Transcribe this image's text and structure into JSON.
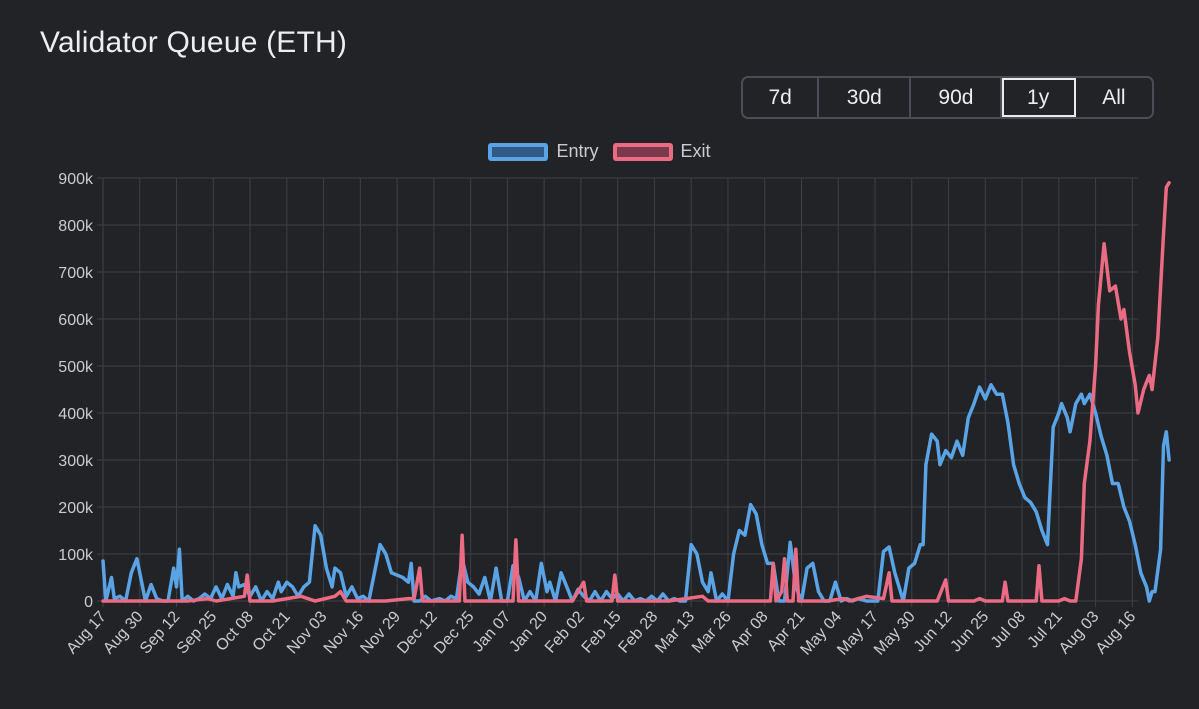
{
  "title": "Validator Queue (ETH)",
  "range_buttons": [
    "7d",
    "30d",
    "90d",
    "1y",
    "All"
  ],
  "active_range": "1y",
  "colors": {
    "background": "#212327",
    "grid": "#3d4046",
    "entry": "#5aa4e6",
    "entry_fill": "#2f5a85",
    "exit": "#ec6b84",
    "exit_fill": "#7a3a4a"
  },
  "chart_data": {
    "type": "line",
    "title": "Validator Queue (ETH)",
    "xlabel": "",
    "ylabel": "",
    "ylim": [
      0,
      900000
    ],
    "yticks": [
      0,
      100000,
      200000,
      300000,
      400000,
      500000,
      600000,
      700000,
      800000,
      900000
    ],
    "ytick_labels": [
      "0",
      "100k",
      "200k",
      "300k",
      "400k",
      "500k",
      "600k",
      "700k",
      "800k",
      "900k"
    ],
    "grid": true,
    "legend": "top-center",
    "x_tick_labels": [
      "Aug 17",
      "Aug 30",
      "Sep 12",
      "Sep 25",
      "Oct 08",
      "Oct 21",
      "Nov 03",
      "Nov 16",
      "Nov 29",
      "Dec 12",
      "Dec 25",
      "Jan 07",
      "Jan 20",
      "Feb 02",
      "Feb 15",
      "Feb 28",
      "Mar 13",
      "Mar 26",
      "Apr 08",
      "Apr 21",
      "May 04",
      "May 17",
      "May 30",
      "Jun 12",
      "Jun 25",
      "Jul 08",
      "Jul 21",
      "Aug 03",
      "Aug 16"
    ],
    "x_day_range": [
      0,
      366
    ],
    "x_tick_days": [
      0,
      13,
      26,
      39,
      52,
      65,
      78,
      91,
      104,
      117,
      130,
      143,
      156,
      169,
      182,
      195,
      208,
      221,
      234,
      247,
      260,
      273,
      286,
      299,
      312,
      325,
      338,
      351,
      364
    ],
    "series": [
      {
        "name": "Entry",
        "points": [
          [
            0,
            85000
          ],
          [
            1,
            0
          ],
          [
            3,
            50000
          ],
          [
            4,
            5000
          ],
          [
            6,
            10000
          ],
          [
            8,
            0
          ],
          [
            10,
            60000
          ],
          [
            12,
            90000
          ],
          [
            14,
            30000
          ],
          [
            15,
            0
          ],
          [
            17,
            35000
          ],
          [
            19,
            5000
          ],
          [
            21,
            0
          ],
          [
            23,
            0
          ],
          [
            25,
            70000
          ],
          [
            26,
            30000
          ],
          [
            27,
            110000
          ],
          [
            28,
            0
          ],
          [
            30,
            10000
          ],
          [
            32,
            0
          ],
          [
            34,
            5000
          ],
          [
            36,
            15000
          ],
          [
            38,
            5000
          ],
          [
            40,
            30000
          ],
          [
            42,
            5000
          ],
          [
            44,
            35000
          ],
          [
            46,
            10000
          ],
          [
            47,
            60000
          ],
          [
            48,
            30000
          ],
          [
            50,
            35000
          ],
          [
            52,
            10000
          ],
          [
            54,
            30000
          ],
          [
            56,
            0
          ],
          [
            58,
            20000
          ],
          [
            60,
            5000
          ],
          [
            62,
            40000
          ],
          [
            63,
            20000
          ],
          [
            65,
            40000
          ],
          [
            67,
            30000
          ],
          [
            69,
            10000
          ],
          [
            71,
            30000
          ],
          [
            73,
            40000
          ],
          [
            75,
            160000
          ],
          [
            77,
            140000
          ],
          [
            79,
            70000
          ],
          [
            81,
            30000
          ],
          [
            82,
            70000
          ],
          [
            84,
            60000
          ],
          [
            86,
            10000
          ],
          [
            88,
            30000
          ],
          [
            90,
            5000
          ],
          [
            92,
            10000
          ],
          [
            94,
            0
          ],
          [
            98,
            120000
          ],
          [
            100,
            100000
          ],
          [
            102,
            60000
          ],
          [
            104,
            55000
          ],
          [
            106,
            50000
          ],
          [
            108,
            40000
          ],
          [
            109,
            80000
          ],
          [
            110,
            0
          ],
          [
            112,
            0
          ],
          [
            114,
            10000
          ],
          [
            116,
            0
          ],
          [
            119,
            5000
          ],
          [
            121,
            0
          ],
          [
            123,
            10000
          ],
          [
            125,
            5000
          ],
          [
            127,
            90000
          ],
          [
            129,
            40000
          ],
          [
            131,
            30000
          ],
          [
            133,
            15000
          ],
          [
            135,
            50000
          ],
          [
            137,
            0
          ],
          [
            139,
            70000
          ],
          [
            141,
            0
          ],
          [
            143,
            0
          ],
          [
            145,
            75000
          ],
          [
            147,
            50000
          ],
          [
            149,
            0
          ],
          [
            151,
            20000
          ],
          [
            153,
            0
          ],
          [
            155,
            80000
          ],
          [
            157,
            20000
          ],
          [
            158,
            40000
          ],
          [
            160,
            0
          ],
          [
            162,
            60000
          ],
          [
            164,
            30000
          ],
          [
            166,
            0
          ],
          [
            168,
            25000
          ],
          [
            170,
            10000
          ],
          [
            172,
            0
          ],
          [
            174,
            20000
          ],
          [
            176,
            0
          ],
          [
            178,
            20000
          ],
          [
            180,
            5000
          ],
          [
            182,
            15000
          ],
          [
            184,
            0
          ],
          [
            186,
            15000
          ],
          [
            188,
            0
          ],
          [
            190,
            5000
          ],
          [
            192,
            0
          ],
          [
            194,
            10000
          ],
          [
            196,
            0
          ],
          [
            198,
            15000
          ],
          [
            200,
            0
          ],
          [
            202,
            5000
          ],
          [
            204,
            0
          ],
          [
            206,
            0
          ],
          [
            208,
            120000
          ],
          [
            210,
            100000
          ],
          [
            212,
            40000
          ],
          [
            214,
            20000
          ],
          [
            215,
            60000
          ],
          [
            217,
            0
          ],
          [
            219,
            15000
          ],
          [
            221,
            0
          ],
          [
            223,
            100000
          ],
          [
            225,
            150000
          ],
          [
            227,
            140000
          ],
          [
            229,
            205000
          ],
          [
            231,
            185000
          ],
          [
            233,
            120000
          ],
          [
            235,
            80000
          ],
          [
            237,
            80000
          ],
          [
            239,
            0
          ],
          [
            241,
            0
          ],
          [
            243,
            125000
          ],
          [
            245,
            30000
          ],
          [
            247,
            0
          ],
          [
            249,
            70000
          ],
          [
            251,
            80000
          ],
          [
            253,
            20000
          ],
          [
            255,
            0
          ],
          [
            257,
            0
          ],
          [
            259,
            40000
          ],
          [
            261,
            0
          ],
          [
            263,
            5000
          ],
          [
            265,
            0
          ],
          [
            267,
            5000
          ],
          [
            270,
            0
          ],
          [
            274,
            0
          ],
          [
            276,
            105000
          ],
          [
            278,
            115000
          ],
          [
            280,
            60000
          ],
          [
            282,
            20000
          ],
          [
            283,
            0
          ],
          [
            285,
            70000
          ],
          [
            287,
            80000
          ],
          [
            289,
            120000
          ],
          [
            290,
            120000
          ],
          [
            291,
            290000
          ],
          [
            293,
            355000
          ],
          [
            295,
            340000
          ],
          [
            296,
            290000
          ],
          [
            298,
            320000
          ],
          [
            300,
            305000
          ],
          [
            302,
            340000
          ],
          [
            304,
            310000
          ],
          [
            306,
            390000
          ],
          [
            308,
            420000
          ],
          [
            310,
            455000
          ],
          [
            312,
            430000
          ],
          [
            314,
            460000
          ],
          [
            316,
            440000
          ],
          [
            318,
            440000
          ],
          [
            320,
            380000
          ],
          [
            322,
            290000
          ],
          [
            324,
            250000
          ],
          [
            326,
            220000
          ],
          [
            328,
            210000
          ],
          [
            330,
            190000
          ],
          [
            332,
            150000
          ],
          [
            334,
            120000
          ],
          [
            336,
            370000
          ],
          [
            338,
            400000
          ],
          [
            339,
            420000
          ],
          [
            341,
            390000
          ],
          [
            342,
            360000
          ],
          [
            344,
            420000
          ],
          [
            346,
            440000
          ],
          [
            347,
            420000
          ],
          [
            349,
            440000
          ],
          [
            351,
            400000
          ],
          [
            353,
            350000
          ],
          [
            355,
            310000
          ],
          [
            357,
            250000
          ],
          [
            359,
            250000
          ],
          [
            361,
            200000
          ],
          [
            363,
            170000
          ],
          [
            365,
            120000
          ],
          [
            367,
            60000
          ],
          [
            369,
            30000
          ],
          [
            370,
            0
          ],
          [
            371,
            20000
          ],
          [
            372,
            20000
          ],
          [
            374,
            110000
          ],
          [
            375,
            330000
          ],
          [
            376,
            360000
          ],
          [
            377,
            300000
          ]
        ]
      },
      {
        "name": "Exit",
        "points": [
          [
            0,
            0
          ],
          [
            24,
            0
          ],
          [
            30,
            0
          ],
          [
            37,
            5000
          ],
          [
            40,
            0
          ],
          [
            50,
            10000
          ],
          [
            51,
            55000
          ],
          [
            52,
            0
          ],
          [
            60,
            0
          ],
          [
            70,
            10000
          ],
          [
            75,
            0
          ],
          [
            82,
            10000
          ],
          [
            84,
            20000
          ],
          [
            86,
            0
          ],
          [
            100,
            0
          ],
          [
            108,
            5000
          ],
          [
            110,
            5000
          ],
          [
            112,
            70000
          ],
          [
            113,
            0
          ],
          [
            120,
            0
          ],
          [
            126,
            0
          ],
          [
            127,
            140000
          ],
          [
            128,
            0
          ],
          [
            140,
            0
          ],
          [
            145,
            0
          ],
          [
            146,
            130000
          ],
          [
            147,
            0
          ],
          [
            158,
            0
          ],
          [
            166,
            0
          ],
          [
            170,
            40000
          ],
          [
            171,
            0
          ],
          [
            180,
            0
          ],
          [
            181,
            55000
          ],
          [
            182,
            0
          ],
          [
            190,
            0
          ],
          [
            200,
            0
          ],
          [
            212,
            10000
          ],
          [
            214,
            0
          ],
          [
            220,
            0
          ],
          [
            236,
            0
          ],
          [
            237,
            80000
          ],
          [
            238,
            0
          ],
          [
            240,
            20000
          ],
          [
            241,
            90000
          ],
          [
            242,
            0
          ],
          [
            244,
            0
          ],
          [
            245,
            110000
          ],
          [
            246,
            0
          ],
          [
            256,
            0
          ],
          [
            262,
            5000
          ],
          [
            264,
            0
          ],
          [
            270,
            10000
          ],
          [
            276,
            5000
          ],
          [
            278,
            60000
          ],
          [
            279,
            0
          ],
          [
            285,
            0
          ],
          [
            295,
            0
          ],
          [
            298,
            45000
          ],
          [
            299,
            0
          ],
          [
            308,
            0
          ],
          [
            310,
            5000
          ],
          [
            312,
            0
          ],
          [
            318,
            0
          ],
          [
            319,
            40000
          ],
          [
            320,
            0
          ],
          [
            330,
            0
          ],
          [
            331,
            75000
          ],
          [
            332,
            0
          ],
          [
            338,
            0
          ],
          [
            340,
            5000
          ],
          [
            342,
            0
          ],
          [
            344,
            0
          ],
          [
            346,
            90000
          ],
          [
            347,
            250000
          ],
          [
            349,
            340000
          ],
          [
            351,
            500000
          ],
          [
            352,
            630000
          ],
          [
            354,
            760000
          ],
          [
            356,
            660000
          ],
          [
            358,
            670000
          ],
          [
            360,
            600000
          ],
          [
            361,
            620000
          ],
          [
            363,
            530000
          ],
          [
            365,
            460000
          ],
          [
            366,
            400000
          ],
          [
            368,
            450000
          ],
          [
            370,
            480000
          ],
          [
            371,
            450000
          ],
          [
            373,
            560000
          ],
          [
            375,
            780000
          ],
          [
            376,
            880000
          ],
          [
            377,
            890000
          ]
        ]
      }
    ]
  }
}
